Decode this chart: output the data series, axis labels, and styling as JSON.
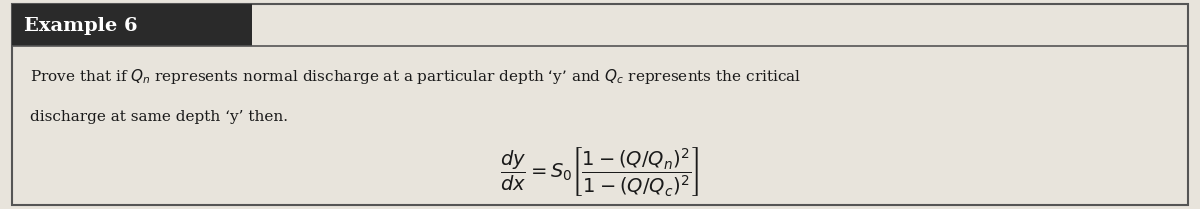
{
  "title": "Example 6",
  "title_bg": "#2a2a2a",
  "title_color": "#ffffff",
  "body_bg": "#e8e4dc",
  "border_color": "#555555",
  "text_color": "#1a1a1a",
  "line1": "Prove that if $Q_n$ represents normal discharge at a particular depth ‘y’ and $Q_c$ represents the critical",
  "line2": "discharge at same depth ‘y’ then.",
  "equation": "$\\dfrac{dy}{dx} = S_0 \\left[\\dfrac{1-(Q/Q_n)^2}{1-(Q/Q_c)^2}\\right]$",
  "fig_width": 12.0,
  "fig_height": 2.09
}
